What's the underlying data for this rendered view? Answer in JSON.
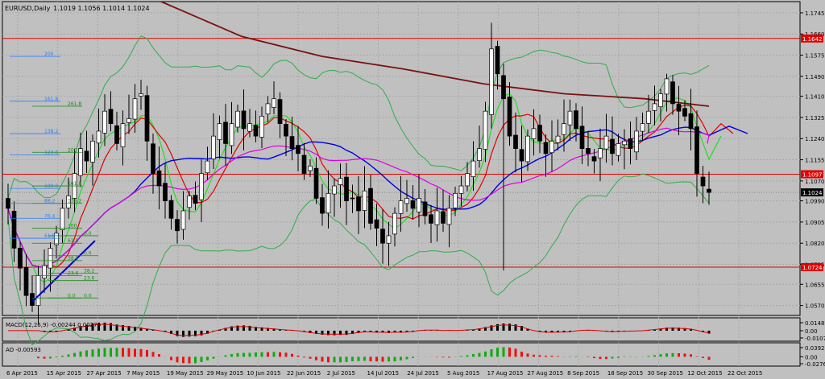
{
  "header": {
    "symbol": "EURUSD,Daily",
    "ohlc": "1.1019 1.1056 1.1014 1.1024"
  },
  "colors": {
    "background": "#c0c0c0",
    "grid": "#a8a8a8",
    "bull_candle": "#ffffff",
    "bear_candle": "#000000",
    "bollinger": "#2fae4a",
    "ma_red": "#e00000",
    "ma_blue": "#0000e0",
    "ma_magenta": "#e000e0",
    "ma_lime": "#22dd22",
    "ma_long": "#7a1010",
    "hline": "#e00000",
    "macd_line": "#e00000",
    "ao_up": "#11aa11",
    "ao_down": "#ee1111",
    "fib_blue": "#2a7fff",
    "fib_green": "#1a8a1a",
    "trendline": "#0000cc",
    "price_tag_bg": "#e00000",
    "current_tag_bg": "#000000"
  },
  "main_axis": {
    "ticks": [
      "1.1745",
      "1.1660",
      "1.1575",
      "1.1490",
      "1.1410",
      "1.1325",
      "1.1240",
      "1.1155",
      "1.1070",
      "1.0990",
      "1.0905",
      "1.0820",
      "1.0735",
      "1.0655",
      "1.0570"
    ]
  },
  "price_tags": {
    "line1": "1.1642",
    "line2": "1.1097",
    "line3": "1.0724",
    "current": "1.1024"
  },
  "macd": {
    "label": "MACD(12,26,9) -0.00244 0.00276",
    "ticks": [
      "0.01486",
      "0.00",
      "-0.0107"
    ]
  },
  "ao": {
    "label": "AO -0.00593",
    "ticks": [
      "0.03928",
      "0.00",
      "-0.02761"
    ]
  },
  "x_axis": {
    "labels": [
      "6 Apr 2015",
      "15 Apr 2015",
      "27 Apr 2015",
      "7 May 2015",
      "19 May 2015",
      "29 May 2015",
      "10 Jun 2015",
      "22 Jun 2015",
      "2 Jul 2015",
      "14 Jul 2015",
      "24 Jul 2015",
      "5 Aug 2015",
      "17 Aug 2015",
      "27 Aug 2015",
      "8 Sep 2015",
      "18 Sep 2015",
      "30 Sep 2015",
      "12 Oct 2015",
      "22 Oct 2015"
    ]
  },
  "fibonacci_left": {
    "labels": [
      "200",
      "161.8",
      "138.2",
      "123.6",
      "100.0",
      "88.2",
      "76.4",
      "61.8"
    ]
  },
  "fibonacci_right": {
    "labels": [
      "261.8",
      "200",
      "161.8",
      "138.2",
      "100",
      "61.8",
      "38.2",
      "23.6",
      "0.0",
      "0.0",
      "0.0",
      "38.2",
      "23.6",
      "0.0"
    ]
  },
  "chart_data": {
    "type": "candlestick",
    "title": "EURUSD,Daily",
    "ylim": [
      1.053,
      1.179
    ],
    "x_start": "6 Apr 2015",
    "x_end": "23 Oct 2015",
    "horizontal_levels": [
      1.1642,
      1.1097,
      1.0724
    ],
    "close_series": [
      1.096,
      1.08,
      1.072,
      1.061,
      1.057,
      1.069,
      1.073,
      1.08,
      1.086,
      1.096,
      1.101,
      1.11,
      1.12,
      1.115,
      1.123,
      1.127,
      1.135,
      1.13,
      1.122,
      1.13,
      1.132,
      1.14,
      1.142,
      1.123,
      1.11,
      1.105,
      1.099,
      1.092,
      1.087,
      1.095,
      1.101,
      1.098,
      1.11,
      1.115,
      1.125,
      1.13,
      1.122,
      1.13,
      1.135,
      1.128,
      1.13,
      1.125,
      1.133,
      1.138,
      1.14,
      1.13,
      1.125,
      1.12,
      1.118,
      1.11,
      1.113,
      1.1,
      1.094,
      1.102,
      1.105,
      1.108,
      1.099,
      1.1,
      1.095,
      1.103,
      1.09,
      1.088,
      1.082,
      1.085,
      1.094,
      1.099,
      1.1,
      1.096,
      1.1,
      1.093,
      1.09,
      1.095,
      1.09,
      1.096,
      1.102,
      1.105,
      1.11,
      1.115,
      1.12,
      1.135,
      1.16,
      1.15,
      1.14,
      1.125,
      1.12,
      1.115,
      1.125,
      1.128,
      1.123,
      1.118,
      1.123,
      1.125,
      1.13,
      1.135,
      1.128,
      1.12,
      1.118,
      1.115,
      1.12,
      1.125,
      1.118,
      1.122,
      1.123,
      1.12,
      1.127,
      1.13,
      1.135,
      1.138,
      1.142,
      1.148,
      1.138,
      1.135,
      1.133,
      1.128,
      1.11,
      1.105,
      1.1024
    ],
    "macd_ticks": [
      0.01486,
      0.0,
      -0.0107
    ],
    "ao_ticks": [
      0.03928,
      0.0,
      -0.02761
    ]
  }
}
